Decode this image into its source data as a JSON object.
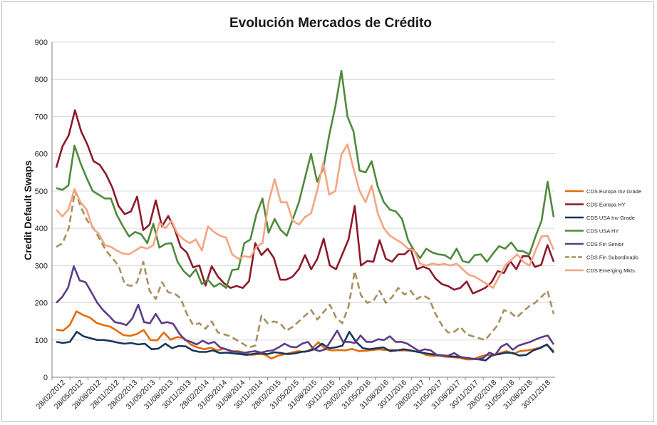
{
  "chart_data": {
    "type": "line",
    "title": "Evolución Mercados de Crédito",
    "ylabel": "Credit Default Swaps",
    "xlabel": "",
    "ylim": [
      0,
      900
    ],
    "yticks": [
      0,
      100,
      200,
      300,
      400,
      500,
      600,
      700,
      800,
      900
    ],
    "grid": "horizontal",
    "legend_position": "right",
    "x_tick_labels": [
      "28/02/2012",
      "28/05/2012",
      "28/08/2012",
      "28/11/2012",
      "28/02/2013",
      "31/05/2013",
      "31/08/2013",
      "30/11/2013",
      "28/02/2014",
      "31/05/2014",
      "31/08/2014",
      "30/11/2014",
      "28/02/2015",
      "31/05/2015",
      "31/08/2015",
      "30/11/2015",
      "29/02/2016",
      "31/05/2016",
      "31/08/2016",
      "30/11/2016",
      "28/02/2017",
      "31/05/2017",
      "31/08/2017",
      "30/11/2017",
      "28/02/2018",
      "31/05/2018",
      "31/08/2018",
      "30/11/2018"
    ],
    "series": [
      {
        "name": "CDS Europa Inv Grade",
        "color": "#e36c09",
        "style": "solid",
        "values": [
          128,
          125,
          140,
          177,
          167,
          160,
          146,
          140,
          136,
          125,
          113,
          111,
          116,
          127,
          100,
          99,
          120,
          101,
          108,
          105,
          88,
          80,
          75,
          79,
          72,
          77,
          69,
          70,
          66,
          60,
          62,
          61,
          50,
          58,
          62,
          66,
          70,
          68,
          76,
          94,
          76,
          72,
          73,
          72,
          76,
          70,
          71,
          73,
          75,
          73,
          74,
          72,
          72,
          70,
          69,
          60,
          57,
          58,
          55,
          54,
          52,
          48,
          48,
          55,
          60,
          58,
          65,
          70,
          63,
          70,
          72,
          75,
          80,
          87,
          70
        ]
      },
      {
        "name": "CDS Europa HY",
        "color": "#8b1a2b",
        "style": "solid",
        "values": [
          563,
          620,
          650,
          717,
          660,
          625,
          580,
          570,
          545,
          510,
          460,
          438,
          445,
          485,
          395,
          410,
          475,
          405,
          433,
          400,
          350,
          335,
          295,
          300,
          246,
          298,
          270,
          252,
          240,
          245,
          240,
          258,
          360,
          328,
          345,
          320,
          262,
          262,
          270,
          290,
          328,
          290,
          318,
          372,
          300,
          290,
          330,
          370,
          460,
          300,
          312,
          310,
          368,
          318,
          310,
          330,
          330,
          345,
          290,
          297,
          290,
          265,
          250,
          245,
          235,
          240,
          257,
          225,
          232,
          240,
          255,
          285,
          280,
          312,
          290,
          325,
          325,
          296,
          302,
          355,
          310
        ]
      },
      {
        "name": "CDS USA Inv Grade",
        "color": "#17375e",
        "style": "solid",
        "values": [
          95,
          92,
          95,
          122,
          110,
          105,
          100,
          100,
          97,
          93,
          90,
          92,
          88,
          90,
          75,
          77,
          90,
          78,
          84,
          83,
          72,
          68,
          68,
          72,
          65,
          66,
          64,
          62,
          60,
          63,
          65,
          62,
          67,
          65,
          62,
          64,
          68,
          70,
          76,
          90,
          78,
          80,
          85,
          122,
          95,
          78,
          75,
          78,
          80,
          70,
          72,
          75,
          72,
          68,
          65,
          62,
          60,
          58,
          56,
          55,
          52,
          50,
          48,
          45,
          60,
          62,
          66,
          65,
          58,
          60,
          72,
          78,
          88,
          66
        ]
      },
      {
        "name": "CDS USA HY",
        "color": "#4f8a3c",
        "style": "solid",
        "values": [
          508,
          503,
          515,
          622,
          575,
          535,
          500,
          490,
          480,
          480,
          435,
          405,
          378,
          390,
          384,
          360,
          412,
          348,
          358,
          360,
          310,
          285,
          270,
          290,
          250,
          262,
          243,
          252,
          240,
          288,
          290,
          360,
          370,
          438,
          480,
          388,
          425,
          395,
          380,
          425,
          470,
          535,
          600,
          525,
          560,
          650,
          727,
          823,
          700,
          660,
          555,
          550,
          580,
          512,
          470,
          450,
          445,
          425,
          368,
          340,
          320,
          345,
          335,
          330,
          328,
          318,
          345,
          312,
          308,
          328,
          330,
          310,
          332,
          352,
          345,
          362,
          340,
          338,
          330,
          378,
          420,
          525,
          430
        ]
      },
      {
        "name": "CDS Fin Senior",
        "color": "#5b3d87",
        "style": "solid",
        "values": [
          200,
          215,
          240,
          298,
          260,
          255,
          228,
          200,
          180,
          165,
          148,
          145,
          140,
          158,
          195,
          148,
          145,
          170,
          145,
          148,
          143,
          118,
          100,
          95,
          88,
          98,
          90,
          95,
          80,
          75,
          70,
          68,
          65,
          68,
          70,
          66,
          70,
          72,
          80,
          90,
          82,
          80,
          90,
          95,
          75,
          70,
          75,
          100,
          125,
          95,
          95,
          92,
          112,
          95,
          95,
          102,
          100,
          110,
          95,
          95,
          90,
          80,
          70,
          75,
          72,
          60,
          57,
          58,
          65,
          55,
          52,
          50,
          48,
          52,
          66,
          60,
          82,
          90,
          74,
          85,
          90,
          95,
          102,
          108,
          112,
          88
        ]
      },
      {
        "name": "CDS Fin Subordinado",
        "color": "#a78f5e",
        "style": "dashed",
        "values": [
          350,
          360,
          400,
          500,
          455,
          420,
          400,
          370,
          340,
          320,
          300,
          250,
          245,
          255,
          310,
          232,
          210,
          255,
          228,
          225,
          212,
          170,
          140,
          145,
          130,
          150,
          120,
          115,
          110,
          100,
          90,
          80,
          85,
          165,
          145,
          150,
          145,
          125,
          135,
          150,
          165,
          180,
          155,
          175,
          195,
          160,
          145,
          190,
          285,
          220,
          200,
          205,
          232,
          200,
          215,
          240,
          222,
          232,
          210,
          220,
          210,
          170,
          140,
          120,
          122,
          135,
          115,
          110,
          105,
          100,
          120,
          140,
          180,
          175,
          160,
          175,
          190,
          200,
          215,
          232,
          170
        ]
      },
      {
        "name": "CDS Emerging Mkts.",
        "color": "#f4a582",
        "style": "solid",
        "values": [
          450,
          432,
          450,
          505,
          470,
          450,
          400,
          385,
          355,
          350,
          340,
          332,
          330,
          340,
          350,
          345,
          355,
          415,
          400,
          420,
          385,
          370,
          360,
          370,
          340,
          405,
          390,
          380,
          375,
          330,
          318,
          325,
          322,
          350,
          360,
          470,
          532,
          470,
          470,
          420,
          410,
          430,
          440,
          500,
          575,
          490,
          500,
          598,
          625,
          560,
          500,
          470,
          515,
          440,
          400,
          380,
          370,
          360,
          345,
          340,
          305,
          300,
          305,
          302,
          304,
          300,
          305,
          290,
          275,
          270,
          260,
          250,
          240,
          270,
          300,
          315,
          330,
          310,
          300,
          340,
          378,
          380,
          342
        ]
      }
    ]
  }
}
